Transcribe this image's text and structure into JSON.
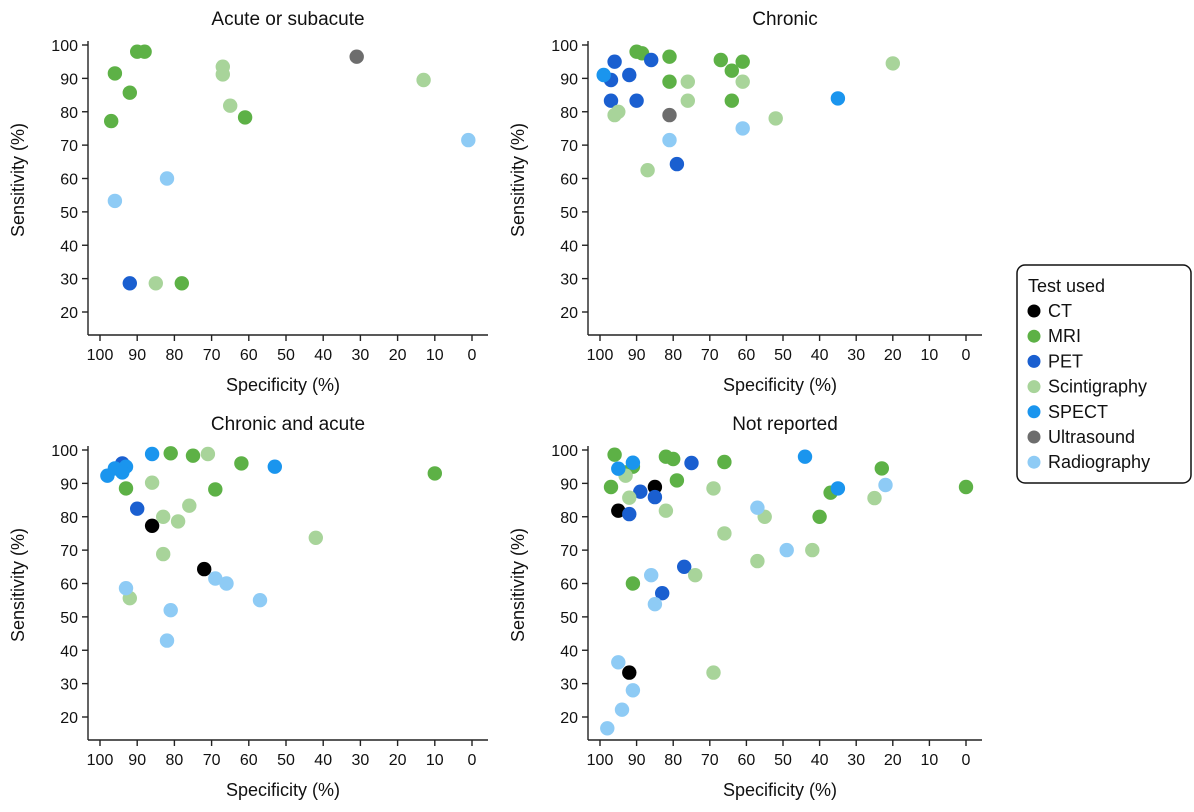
{
  "legend": {
    "title": "Test used",
    "entries": [
      {
        "name": "CT",
        "color": "#000000"
      },
      {
        "name": "MRI",
        "color": "#5db146"
      },
      {
        "name": "PET",
        "color": "#1a5fd0"
      },
      {
        "name": "Scintigraphy",
        "color": "#a8d49a"
      },
      {
        "name": "SPECT",
        "color": "#1a95ee"
      },
      {
        "name": "Ultrasound",
        "color": "#6d6d6d"
      },
      {
        "name": "Radiography",
        "color": "#8ecbf5"
      }
    ]
  },
  "chart_data": [
    {
      "type": "scatter",
      "title": "Acute or subacute",
      "xlabel": "Specificity (%)",
      "ylabel": "Sensitivity (%)",
      "xlim": [
        100,
        0
      ],
      "ylim": [
        20,
        100
      ],
      "x_reversed": true,
      "xticks": [
        "100",
        "90",
        "80",
        "70",
        "60",
        "50",
        "40",
        "30",
        "20",
        "10",
        "0"
      ],
      "yticks": [
        "20",
        "30",
        "40",
        "50",
        "60",
        "70",
        "80",
        "90",
        "100"
      ],
      "grid": false,
      "series": [
        {
          "name": "MRI",
          "points": [
            [
              90,
              98
            ],
            [
              88,
              98
            ],
            [
              96,
              91.5
            ],
            [
              92,
              85.7
            ],
            [
              97,
              77.2
            ],
            [
              61,
              78.3
            ],
            [
              78,
              28.6
            ]
          ]
        },
        {
          "name": "PET",
          "points": [
            [
              92,
              28.6
            ]
          ]
        },
        {
          "name": "Scintigraphy",
          "points": [
            [
              67,
              93.5
            ],
            [
              67,
              91.2
            ],
            [
              65,
              81.8
            ],
            [
              13,
              89.5
            ],
            [
              85,
              28.6
            ]
          ]
        },
        {
          "name": "Ultrasound",
          "points": [
            [
              31,
              96.5
            ]
          ]
        },
        {
          "name": "Radiography",
          "points": [
            [
              82,
              60
            ],
            [
              96,
              53.3
            ],
            [
              1,
              71.5
            ]
          ]
        }
      ]
    },
    {
      "type": "scatter",
      "title": "Chronic",
      "xlabel": "Specificity (%)",
      "ylabel": "Sensitivity (%)",
      "xlim": [
        100,
        0
      ],
      "ylim": [
        20,
        100
      ],
      "x_reversed": true,
      "xticks": [
        "100",
        "90",
        "80",
        "70",
        "60",
        "50",
        "40",
        "30",
        "20",
        "10",
        "0"
      ],
      "yticks": [
        "20",
        "30",
        "40",
        "50",
        "60",
        "70",
        "80",
        "90",
        "100"
      ],
      "grid": false,
      "series": [
        {
          "name": "MRI",
          "points": [
            [
              90,
              98
            ],
            [
              88.5,
              97.5
            ],
            [
              81,
              96.5
            ],
            [
              67,
              95.5
            ],
            [
              61,
              95
            ],
            [
              64,
              92.3
            ],
            [
              81,
              89
            ],
            [
              64,
              83.3
            ]
          ]
        },
        {
          "name": "PET",
          "points": [
            [
              96,
              95
            ],
            [
              86,
              95.5
            ],
            [
              92,
              91
            ],
            [
              97,
              89.5
            ],
            [
              97,
              83.3
            ],
            [
              90,
              83.3
            ],
            [
              79,
              64.3
            ]
          ]
        },
        {
          "name": "Scintigraphy",
          "points": [
            [
              76,
              89
            ],
            [
              61,
              89
            ],
            [
              76,
              83.3
            ],
            [
              96,
              79
            ],
            [
              95,
              80
            ],
            [
              52,
              78
            ],
            [
              20,
              94.5
            ],
            [
              87,
              62.5
            ]
          ]
        },
        {
          "name": "SPECT",
          "points": [
            [
              99,
              91
            ],
            [
              35,
              84
            ]
          ]
        },
        {
          "name": "Ultrasound",
          "points": [
            [
              81,
              79
            ]
          ]
        },
        {
          "name": "Radiography",
          "points": [
            [
              81,
              71.5
            ],
            [
              61,
              75
            ]
          ]
        }
      ]
    },
    {
      "type": "scatter",
      "title": "Chronic and acute",
      "xlabel": "Specificity (%)",
      "ylabel": "Sensitivity (%)",
      "xlim": [
        100,
        0
      ],
      "ylim": [
        20,
        100
      ],
      "x_reversed": true,
      "xticks": [
        "100",
        "90",
        "80",
        "70",
        "60",
        "50",
        "40",
        "30",
        "20",
        "10",
        "0"
      ],
      "yticks": [
        "20",
        "30",
        "40",
        "50",
        "60",
        "70",
        "80",
        "90",
        "100"
      ],
      "grid": false,
      "series": [
        {
          "name": "CT",
          "points": [
            [
              86,
              77.3
            ],
            [
              72,
              64.3
            ]
          ]
        },
        {
          "name": "MRI",
          "points": [
            [
              81,
              99
            ],
            [
              75,
              98.3
            ],
            [
              62,
              96
            ],
            [
              93,
              88.5
            ],
            [
              69,
              88.2
            ],
            [
              10,
              93
            ]
          ]
        },
        {
          "name": "PET",
          "points": [
            [
              94,
              96
            ],
            [
              90,
              82.4
            ]
          ]
        },
        {
          "name": "Scintigraphy",
          "points": [
            [
              71,
              98.8
            ],
            [
              86,
              90.2
            ],
            [
              76,
              83.3
            ],
            [
              83,
              80
            ],
            [
              79,
              78.6
            ],
            [
              83,
              68.8
            ],
            [
              42,
              73.7
            ],
            [
              92,
              55.6
            ]
          ]
        },
        {
          "name": "SPECT",
          "points": [
            [
              86,
              98.8
            ],
            [
              96,
              94.5
            ],
            [
              93,
              95
            ],
            [
              94,
              93.3
            ],
            [
              98,
              92.3
            ],
            [
              53,
              95
            ]
          ]
        },
        {
          "name": "Radiography",
          "points": [
            [
              69,
              61.5
            ],
            [
              66,
              60
            ],
            [
              57,
              55
            ],
            [
              93,
              58.6
            ],
            [
              81,
              52
            ],
            [
              82,
              42.9
            ]
          ]
        }
      ]
    },
    {
      "type": "scatter",
      "title": "Not reported",
      "xlabel": "Specificity (%)",
      "ylabel": "Sensitivity (%)",
      "xlim": [
        100,
        0
      ],
      "ylim": [
        20,
        100
      ],
      "x_reversed": true,
      "xticks": [
        "100",
        "90",
        "80",
        "70",
        "60",
        "50",
        "40",
        "30",
        "20",
        "10",
        "0"
      ],
      "yticks": [
        "20",
        "30",
        "40",
        "50",
        "60",
        "70",
        "80",
        "90",
        "100"
      ],
      "grid": false,
      "series": [
        {
          "name": "CT",
          "points": [
            [
              85,
              88.9
            ],
            [
              95,
              81.8
            ],
            [
              92,
              33.3
            ]
          ]
        },
        {
          "name": "MRI",
          "points": [
            [
              96,
              98.6
            ],
            [
              82,
              98
            ],
            [
              80,
              97.3
            ],
            [
              66,
              96.4
            ],
            [
              91,
              95
            ],
            [
              93,
              93.3
            ],
            [
              79,
              90.9
            ],
            [
              97,
              88.9
            ],
            [
              40,
              80
            ],
            [
              23,
              94.5
            ],
            [
              0,
              88.9
            ],
            [
              37,
              87.2
            ],
            [
              91,
              60
            ]
          ]
        },
        {
          "name": "PET",
          "points": [
            [
              75,
              96.1
            ],
            [
              85,
              85.9
            ],
            [
              89,
              87.5
            ],
            [
              92,
              80.8
            ],
            [
              77,
              65
            ],
            [
              83,
              57.1
            ]
          ]
        },
        {
          "name": "Scintigraphy",
          "points": [
            [
              93,
              92.3
            ],
            [
              92,
              85.7
            ],
            [
              82,
              81.8
            ],
            [
              69,
              88.5
            ],
            [
              66,
              75
            ],
            [
              55,
              80
            ],
            [
              42,
              70
            ],
            [
              57,
              66.7
            ],
            [
              74,
              62.5
            ],
            [
              25,
              85.6
            ],
            [
              69,
              33.3
            ]
          ]
        },
        {
          "name": "SPECT",
          "points": [
            [
              95,
              94.4
            ],
            [
              91,
              96.2
            ],
            [
              44,
              98
            ],
            [
              35,
              88.5
            ]
          ]
        },
        {
          "name": "Radiography",
          "points": [
            [
              57,
              82.7
            ],
            [
              49,
              70
            ],
            [
              22,
              89.5
            ],
            [
              86,
              62.5
            ],
            [
              85,
              53.8
            ],
            [
              95,
              36.4
            ],
            [
              91,
              28
            ],
            [
              94,
              22.2
            ],
            [
              98,
              16.6
            ]
          ]
        }
      ]
    }
  ]
}
